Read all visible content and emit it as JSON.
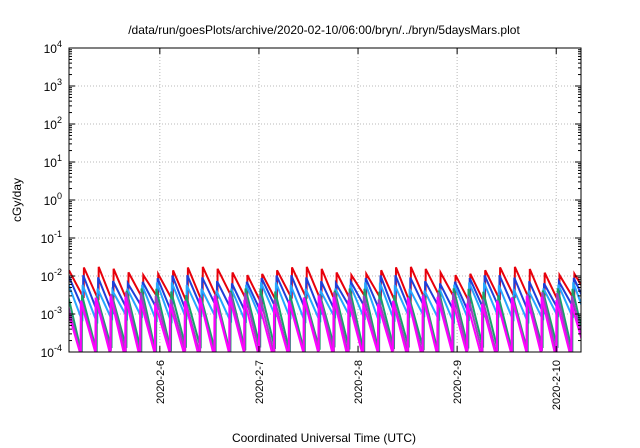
{
  "chart_data": {
    "type": "line",
    "title": "/data/run/goesPlots/archive/2020-02-10/06:00/bryn/../bryn/5daysMars.plot",
    "xlabel": "Coordinated Universal Time (UTC)",
    "ylabel": "cGy/day",
    "yscale": "log",
    "ylim": [
      0.0001,
      10000
    ],
    "y_ticks": [
      {
        "value": 0.0001,
        "base": "10",
        "exp": "-4"
      },
      {
        "value": 0.001,
        "base": "10",
        "exp": "-3"
      },
      {
        "value": 0.01,
        "base": "10",
        "exp": "-2"
      },
      {
        "value": 0.1,
        "base": "10",
        "exp": "-1"
      },
      {
        "value": 1,
        "base": "10",
        "exp": "0"
      },
      {
        "value": 10,
        "base": "10",
        "exp": "1"
      },
      {
        "value": 100,
        "base": "10",
        "exp": "2"
      },
      {
        "value": 1000,
        "base": "10",
        "exp": "3"
      },
      {
        "value": 10000,
        "base": "10",
        "exp": "4"
      }
    ],
    "xlim": [
      "2020-02-05 02:00",
      "2020-02-10 06:00"
    ],
    "x_ticks": [
      {
        "value": "2020-02-06 00:00",
        "label": "2020-2-6"
      },
      {
        "value": "2020-02-07 00:00",
        "label": "2020-2-7"
      },
      {
        "value": "2020-02-08 00:00",
        "label": "2020-2-8"
      },
      {
        "value": "2020-02-09 00:00",
        "label": "2020-2-9"
      },
      {
        "value": "2020-02-10 00:00",
        "label": "2020-2-10"
      }
    ],
    "grid": true,
    "sawtooth_period_hours": 3.6,
    "series": [
      {
        "color": "#e8000b",
        "peak": 0.014,
        "trough": 0.0022
      },
      {
        "color": "#1f3fd8",
        "peak": 0.0085,
        "trough": 0.0012
      },
      {
        "color": "#26a6ff",
        "peak": 0.0055,
        "trough": 0.0007
      },
      {
        "color": "#1aa06a",
        "peak": 0.0038,
        "trough": 0.00011
      },
      {
        "color": "#a040c0",
        "peak": 0.003,
        "trough": 9e-05
      },
      {
        "color": "#ff00ff",
        "peak": 0.0024,
        "trough": 8e-05
      }
    ]
  }
}
